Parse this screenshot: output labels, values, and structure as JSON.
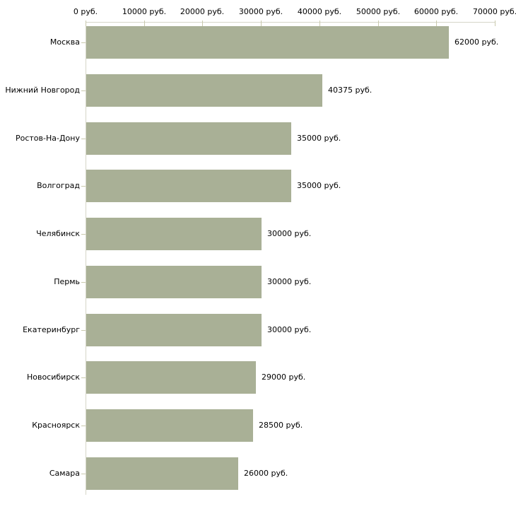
{
  "chart_data": {
    "type": "bar",
    "orientation": "horizontal",
    "title": "",
    "xlabel": "",
    "ylabel": "",
    "unit": "руб.",
    "categories": [
      "Москва",
      "Нижний Новгород",
      "Ростов-На-Дону",
      "Волгоград",
      "Челябинск",
      "Пермь",
      "Екатеринбург",
      "Новосибирск",
      "Красноярск",
      "Самара"
    ],
    "values": [
      62000,
      40375,
      35000,
      35000,
      30000,
      30000,
      30000,
      29000,
      28500,
      26000
    ],
    "value_labels": [
      "62000 руб.",
      "40375 руб.",
      "35000 руб.",
      "35000 руб.",
      "30000 руб.",
      "30000 руб.",
      "30000 руб.",
      "29000 руб.",
      "28500 руб.",
      "26000 руб."
    ],
    "x_ticks": [
      {
        "value": 0,
        "label": "0 руб."
      },
      {
        "value": 10000,
        "label": "10000 руб."
      },
      {
        "value": 20000,
        "label": "20000 руб."
      },
      {
        "value": 30000,
        "label": "30000 руб."
      },
      {
        "value": 40000,
        "label": "40000 руб."
      },
      {
        "value": 50000,
        "label": "50000 руб."
      },
      {
        "value": 60000,
        "label": "60000 руб."
      },
      {
        "value": 70000,
        "label": "70000 руб."
      }
    ],
    "xlim": [
      0,
      70000
    ],
    "grid": "off",
    "legend": "none",
    "colors": {
      "bar": "#a9b096",
      "axis_line": "#d6d6c8",
      "tick": "#c9c9ad",
      "text": "#000000",
      "background": "#ffffff"
    }
  }
}
